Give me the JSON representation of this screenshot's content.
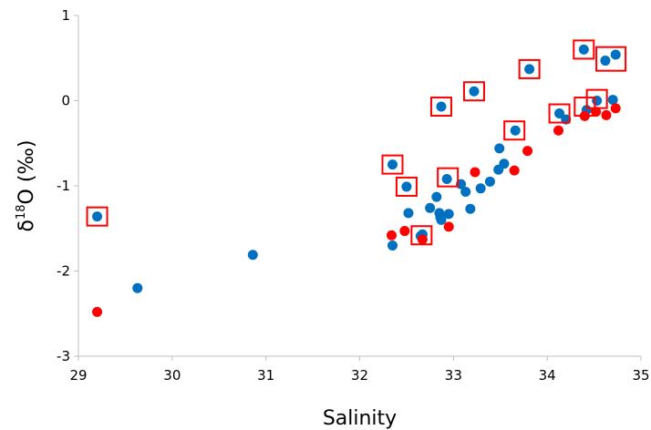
{
  "chart_data": {
    "type": "scatter",
    "title": "",
    "xlabel": "Salinity",
    "ylabel": {
      "base": "δ",
      "sup": "18",
      "rest": "O (‰)"
    },
    "xlim": [
      29,
      35
    ],
    "ylim": [
      -3,
      1
    ],
    "xticks": [
      "29",
      "30",
      "31",
      "32",
      "33",
      "34",
      "35"
    ],
    "yticks": [
      "-3",
      "-2",
      "-1",
      "0",
      "1"
    ],
    "grid": false,
    "legend": "none",
    "series": [
      {
        "color": "#0070C0",
        "points": [
          [
            29.2,
            -1.36
          ],
          [
            29.63,
            -2.2
          ],
          [
            30.86,
            -1.81
          ],
          [
            32.35,
            -0.75
          ],
          [
            32.35,
            -1.7
          ],
          [
            32.5,
            -1.01
          ],
          [
            32.52,
            -1.32
          ],
          [
            32.65,
            -1.59
          ],
          [
            32.67,
            -1.57
          ],
          [
            32.75,
            -1.26
          ],
          [
            32.82,
            -1.13
          ],
          [
            32.85,
            -1.32
          ],
          [
            32.86,
            -1.37
          ],
          [
            32.87,
            -1.4
          ],
          [
            32.87,
            -0.07
          ],
          [
            32.93,
            -0.92
          ],
          [
            32.95,
            -1.33
          ],
          [
            33.08,
            -0.98
          ],
          [
            33.13,
            -1.07
          ],
          [
            33.18,
            -1.27
          ],
          [
            33.22,
            0.11
          ],
          [
            33.29,
            -1.03
          ],
          [
            33.39,
            -0.95
          ],
          [
            33.48,
            -0.81
          ],
          [
            33.49,
            -0.56
          ],
          [
            33.54,
            -0.74
          ],
          [
            33.66,
            -0.35
          ],
          [
            33.81,
            0.37
          ],
          [
            34.13,
            -0.15
          ],
          [
            34.2,
            -0.22
          ],
          [
            34.39,
            0.6
          ],
          [
            34.42,
            -0.11
          ],
          [
            34.53,
            0.0
          ],
          [
            34.62,
            0.47
          ],
          [
            34.7,
            0.01
          ],
          [
            34.73,
            0.54
          ]
        ]
      },
      {
        "color": "#FF0000",
        "points": [
          [
            29.2,
            -2.48
          ],
          [
            32.34,
            -1.58
          ],
          [
            32.48,
            -1.53
          ],
          [
            32.67,
            -1.63
          ],
          [
            32.95,
            -1.48
          ],
          [
            33.23,
            -0.84
          ],
          [
            33.65,
            -0.82
          ],
          [
            33.79,
            -0.59
          ],
          [
            34.12,
            -0.35
          ],
          [
            34.4,
            -0.18
          ],
          [
            34.52,
            -0.13
          ],
          [
            34.63,
            -0.17
          ],
          [
            34.73,
            -0.09
          ]
        ]
      }
    ],
    "highlight_boxes": {
      "color": "#FF0000",
      "points": [
        [
          29.2,
          -1.36
        ],
        [
          32.35,
          -0.75
        ],
        [
          32.5,
          -1.01
        ],
        [
          32.66,
          -1.58
        ],
        [
          32.87,
          -0.07
        ],
        [
          32.94,
          -0.9
        ],
        [
          33.22,
          0.11
        ],
        [
          33.65,
          -0.35
        ],
        [
          33.81,
          0.37
        ],
        [
          34.13,
          -0.15
        ],
        [
          34.39,
          0.6
        ],
        [
          34.4,
          -0.07
        ],
        [
          34.53,
          0.02
        ],
        [
          34.68,
          0.49
        ]
      ]
    }
  }
}
